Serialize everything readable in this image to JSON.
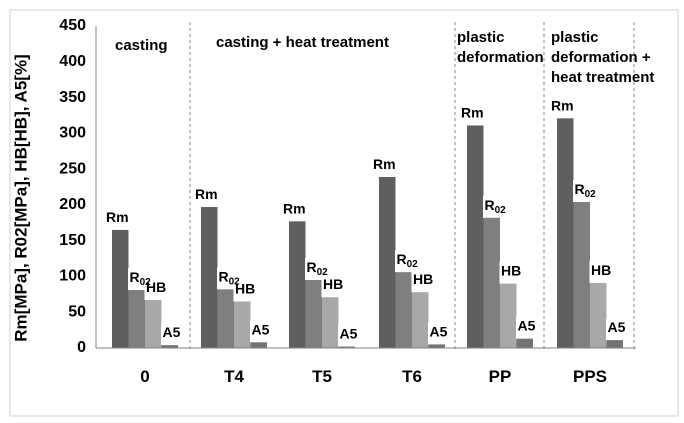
{
  "chart_data": {
    "type": "bar",
    "ylabel": "Rm[MPa], R02[MPa], HB[HB], A5[%]",
    "xlabel": "",
    "ylim": [
      0,
      450
    ],
    "yticks": [
      "0",
      "50",
      "100",
      "150",
      "200",
      "250",
      "300",
      "350",
      "400",
      "450"
    ],
    "categories": [
      "0",
      "T4",
      "T5",
      "T6",
      "PP",
      "PPS"
    ],
    "groups": [
      {
        "label": "casting",
        "categories": [
          "0"
        ]
      },
      {
        "label": "casting + heat treatment",
        "categories": [
          "T4",
          "T5",
          "T6"
        ]
      },
      {
        "label": "plastic deformation",
        "categories": [
          "PP"
        ]
      },
      {
        "label": "plastic deformation + heat treatment",
        "categories": [
          "PPS"
        ]
      }
    ],
    "series": [
      {
        "label": "Rm",
        "label_sub": "",
        "color": "#5f5f5f",
        "values": [
          165,
          197,
          177,
          239,
          311,
          321
        ]
      },
      {
        "label": "R",
        "label_sub": "02",
        "color": "#7f7f7f",
        "values": [
          81,
          82,
          95,
          106,
          182,
          204
        ]
      },
      {
        "label": "HB",
        "label_sub": "",
        "color": "#a8a8a8",
        "values": [
          67,
          65,
          71,
          78,
          90,
          91
        ]
      },
      {
        "label": "A5",
        "label_sub": "",
        "color": "#737373",
        "values": [
          4,
          8,
          2,
          5,
          13,
          11
        ]
      }
    ],
    "grid": false,
    "legend": "none"
  }
}
